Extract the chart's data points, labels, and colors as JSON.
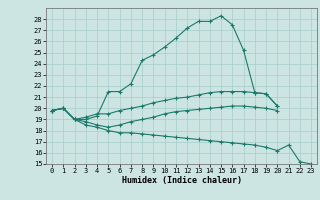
{
  "title": "",
  "xlabel": "Humidex (Indice chaleur)",
  "ylabel": "",
  "xlim": [
    -0.5,
    23.5
  ],
  "ylim": [
    15,
    29
  ],
  "yticks": [
    15,
    16,
    17,
    18,
    19,
    20,
    21,
    22,
    23,
    24,
    25,
    26,
    27,
    28
  ],
  "xticks": [
    0,
    1,
    2,
    3,
    4,
    5,
    6,
    7,
    8,
    9,
    10,
    11,
    12,
    13,
    14,
    15,
    16,
    17,
    18,
    19,
    20,
    21,
    22,
    23
  ],
  "bg_color": "#cce5e3",
  "grid_color": "#a8ceca",
  "line_color": "#1a7a6a",
  "series": [
    {
      "x": [
        0,
        1,
        2,
        3,
        4,
        5,
        6,
        7,
        8,
        9,
        10,
        11,
        12,
        13,
        14,
        15,
        16,
        17,
        18,
        19,
        20
      ],
      "y": [
        19.8,
        20.0,
        19.0,
        19.0,
        19.3,
        21.5,
        21.5,
        22.2,
        24.3,
        24.8,
        25.5,
        26.3,
        27.2,
        27.8,
        27.8,
        28.3,
        27.5,
        25.2,
        21.4,
        21.3,
        20.2
      ]
    },
    {
      "x": [
        0,
        1,
        2,
        3,
        4,
        5,
        6,
        7,
        8,
        9,
        10,
        11,
        12,
        13,
        14,
        15,
        16,
        17,
        18,
        19,
        20
      ],
      "y": [
        19.8,
        20.0,
        19.0,
        19.2,
        19.5,
        19.5,
        19.8,
        20.0,
        20.2,
        20.5,
        20.7,
        20.9,
        21.0,
        21.2,
        21.4,
        21.5,
        21.5,
        21.5,
        21.4,
        21.3,
        20.2
      ]
    },
    {
      "x": [
        0,
        1,
        2,
        3,
        4,
        5,
        6,
        7,
        8,
        9,
        10,
        11,
        12,
        13,
        14,
        15,
        16,
        17,
        18,
        19,
        20
      ],
      "y": [
        19.8,
        20.0,
        19.0,
        18.8,
        18.5,
        18.3,
        18.5,
        18.8,
        19.0,
        19.2,
        19.5,
        19.7,
        19.8,
        19.9,
        20.0,
        20.1,
        20.2,
        20.2,
        20.1,
        20.0,
        19.8
      ]
    },
    {
      "x": [
        0,
        1,
        2,
        3,
        4,
        5,
        6,
        7,
        8,
        9,
        10,
        11,
        12,
        13,
        14,
        15,
        16,
        17,
        18,
        19,
        20,
        21,
        22,
        23
      ],
      "y": [
        19.8,
        20.0,
        19.0,
        18.5,
        18.3,
        18.0,
        17.8,
        17.8,
        17.7,
        17.6,
        17.5,
        17.4,
        17.3,
        17.2,
        17.1,
        17.0,
        16.9,
        16.8,
        16.7,
        16.5,
        16.2,
        16.7,
        15.2,
        15.0
      ]
    }
  ]
}
